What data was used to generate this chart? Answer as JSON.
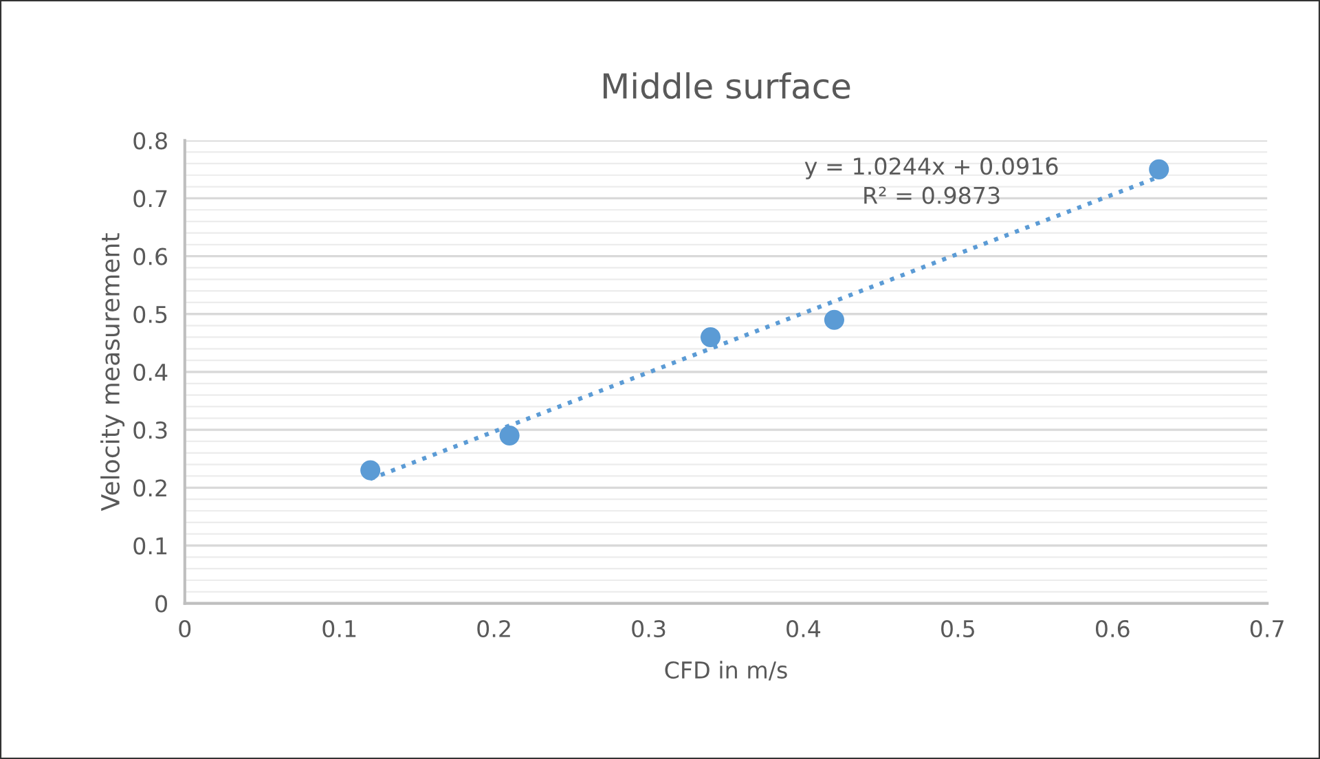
{
  "chart_data": {
    "type": "scatter",
    "title": "Middle surface",
    "xlabel": "CFD in m/s",
    "ylabel": "Velocity measurement",
    "series": [
      {
        "color": "#5b9bd5",
        "x": [
          0.12,
          0.21,
          0.34,
          0.42,
          0.63
        ],
        "values": [
          0.23,
          0.29,
          0.46,
          0.49,
          0.75
        ],
        "marker": "circle"
      },
      {
        "type": "line",
        "color": "#5b9bd5",
        "x": [
          0.12,
          0.63
        ],
        "values": [
          0.215,
          0.737
        ],
        "line_style": "dotted"
      }
    ],
    "annotations": [
      "y = 1.0244x + 0.0916",
      "R² = 0.9873"
    ],
    "xlim": [
      0,
      0.7
    ],
    "xticks": [
      0,
      0.1,
      0.2,
      0.3,
      0.4,
      0.5,
      0.6,
      0.7
    ],
    "ylim": [
      0,
      0.8
    ],
    "yticks": [
      0,
      {
        "value": 0.02,
        "label": null
      },
      {
        "value": 0.04,
        "label": null
      },
      {
        "value": 0.06,
        "label": null
      },
      {
        "value": 0.08,
        "label": null
      },
      0.1,
      {
        "value": 0.12,
        "label": null
      },
      {
        "value": 0.14,
        "label": null
      },
      {
        "value": 0.16,
        "label": null
      },
      {
        "value": 0.18,
        "label": null
      },
      0.2,
      {
        "value": 0.22,
        "label": null
      },
      {
        "value": 0.24,
        "label": null
      },
      {
        "value": 0.26,
        "label": null
      },
      {
        "value": 0.28,
        "label": null
      },
      0.3,
      {
        "value": 0.32,
        "label": null
      },
      {
        "value": 0.34,
        "label": null
      },
      {
        "value": 0.36,
        "label": null
      },
      {
        "value": 0.38,
        "label": null
      },
      0.4,
      {
        "value": 0.42,
        "label": null
      },
      {
        "value": 0.44,
        "label": null
      },
      {
        "value": 0.46,
        "label": null
      },
      {
        "value": 0.48,
        "label": null
      },
      0.5,
      {
        "value": 0.52,
        "label": null
      },
      {
        "value": 0.54,
        "label": null
      },
      {
        "value": 0.56,
        "label": null
      },
      {
        "value": 0.58,
        "label": null
      },
      0.6,
      {
        "value": 0.62,
        "label": null
      },
      {
        "value": 0.64,
        "label": null
      },
      {
        "value": 0.66,
        "label": null
      },
      {
        "value": 0.68,
        "label": null
      },
      0.7,
      {
        "value": 0.72,
        "label": null
      },
      {
        "value": 0.74,
        "label": null
      },
      {
        "value": 0.76,
        "label": null
      },
      {
        "value": 0.78,
        "label": null
      },
      0.8
    ],
    "grid": "y",
    "legend": false
  }
}
